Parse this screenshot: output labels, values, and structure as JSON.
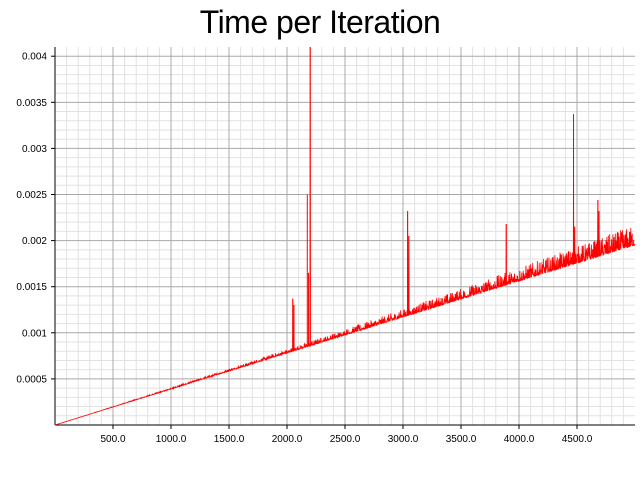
{
  "chart_data": {
    "type": "line",
    "title": "Time per Iteration",
    "xlabel": "",
    "ylabel": "",
    "xlim": [
      0,
      5000
    ],
    "ylim": [
      0,
      0.0041
    ],
    "grid": true,
    "x_ticks": [
      500,
      1000,
      1500,
      2000,
      2500,
      3000,
      3500,
      4000,
      4500
    ],
    "x_tick_labels": [
      "500.0",
      "1000.0",
      "1500.0",
      "2000.0",
      "2500.0",
      "3000.0",
      "3500.0",
      "4000.0",
      "4500.0"
    ],
    "y_ticks": [
      0.0005,
      0.001,
      0.0015,
      0.002,
      0.0025,
      0.003,
      0.0035,
      0.004
    ],
    "y_tick_labels": [
      "0.0005",
      "0.001",
      "0.0015",
      "0.002",
      "0.0025",
      "0.003",
      "0.0035",
      "0.004"
    ],
    "series": [
      {
        "color": "#ff0000",
        "trend": {
          "x": [
            0,
            5000
          ],
          "y": [
            0.0,
            0.00195
          ]
        },
        "spikes": [
          {
            "x": 2050,
            "y": 0.00137
          },
          {
            "x": 2060,
            "y": 0.0013
          },
          {
            "x": 2175,
            "y": 0.0025
          },
          {
            "x": 2185,
            "y": 0.00165
          },
          {
            "x": 2200,
            "y": 0.0041
          },
          {
            "x": 3040,
            "y": 0.00232
          },
          {
            "x": 3050,
            "y": 0.00205
          },
          {
            "x": 3890,
            "y": 0.00218
          },
          {
            "x": 4470,
            "y": 0.00337
          },
          {
            "x": 4480,
            "y": 0.00215
          },
          {
            "x": 4680,
            "y": 0.00244
          },
          {
            "x": 4690,
            "y": 0.00232
          }
        ]
      }
    ]
  }
}
